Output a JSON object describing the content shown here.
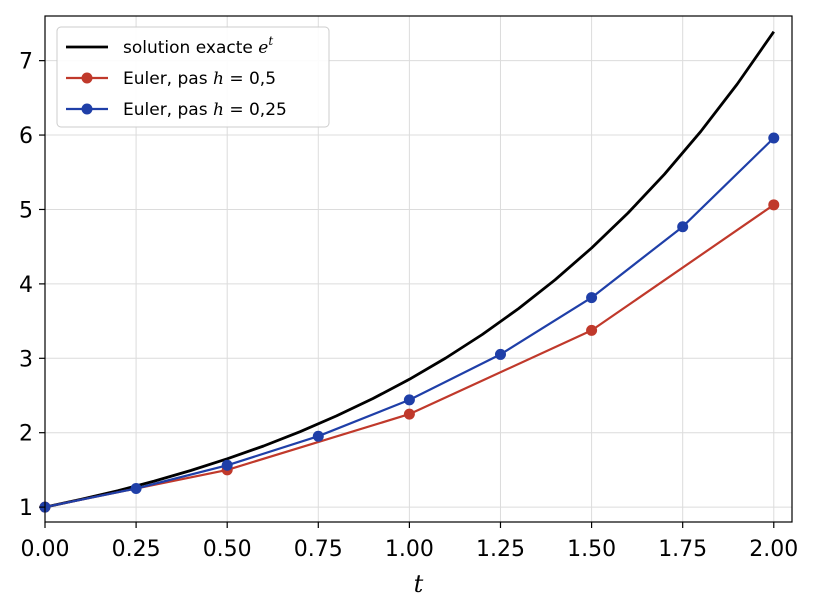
{
  "chart_data": {
    "type": "line",
    "xlabel": "t",
    "ylabel": "",
    "xlim": [
      0,
      2.05
    ],
    "ylim": [
      0.8,
      7.6
    ],
    "xticks": [
      "0.00",
      "0.25",
      "0.50",
      "0.75",
      "1.00",
      "1.25",
      "1.50",
      "1.75",
      "2.00"
    ],
    "yticks": [
      "1",
      "2",
      "3",
      "4",
      "5",
      "6",
      "7"
    ],
    "grid": true,
    "legend_position": "top-left",
    "series": [
      {
        "name": "solution exacte e^t",
        "legend": {
          "text": "solution exacte ",
          "math": "e",
          "sup": "t"
        },
        "color": "#000000",
        "marker": false,
        "x": [
          0,
          0.1,
          0.2,
          0.3,
          0.4,
          0.5,
          0.6,
          0.7,
          0.8,
          0.9,
          1.0,
          1.1,
          1.2,
          1.3,
          1.4,
          1.5,
          1.6,
          1.7,
          1.8,
          1.9,
          2.0
        ],
        "y": [
          1.0,
          1.105,
          1.221,
          1.35,
          1.492,
          1.649,
          1.822,
          2.014,
          2.226,
          2.46,
          2.718,
          3.004,
          3.32,
          3.669,
          4.055,
          4.482,
          4.953,
          5.474,
          6.05,
          6.686,
          7.389
        ]
      },
      {
        "name": "Euler, pas h = 0,5",
        "legend": {
          "text": "Euler, pas ",
          "math": "h",
          "rest": " = 0,5"
        },
        "color": "#c0392b",
        "marker": true,
        "x": [
          0,
          0.5,
          1.0,
          1.5,
          2.0
        ],
        "y": [
          1.0,
          1.5,
          2.25,
          3.375,
          5.0625
        ]
      },
      {
        "name": "Euler, pas h = 0,25",
        "legend": {
          "text": "Euler, pas ",
          "math": "h",
          "rest": " = 0,25"
        },
        "color": "#1f3fa8",
        "marker": true,
        "x": [
          0,
          0.25,
          0.5,
          0.75,
          1.0,
          1.25,
          1.5,
          1.75,
          2.0
        ],
        "y": [
          1.0,
          1.25,
          1.5625,
          1.953,
          2.441,
          3.052,
          3.815,
          4.768,
          5.96
        ]
      }
    ]
  }
}
